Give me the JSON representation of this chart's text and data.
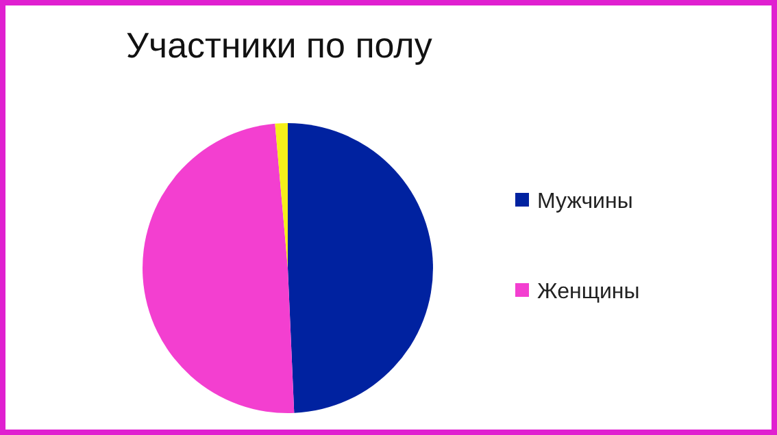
{
  "chart_data": {
    "type": "pie",
    "title": "Участники по полу",
    "categories": [
      "Мужчины",
      "Женщины",
      null
    ],
    "values": [
      49.3,
      49.3,
      1.4
    ],
    "colors": [
      "#0022a0",
      "#f33fd0",
      "#f5ef1a"
    ],
    "legend": "right"
  }
}
